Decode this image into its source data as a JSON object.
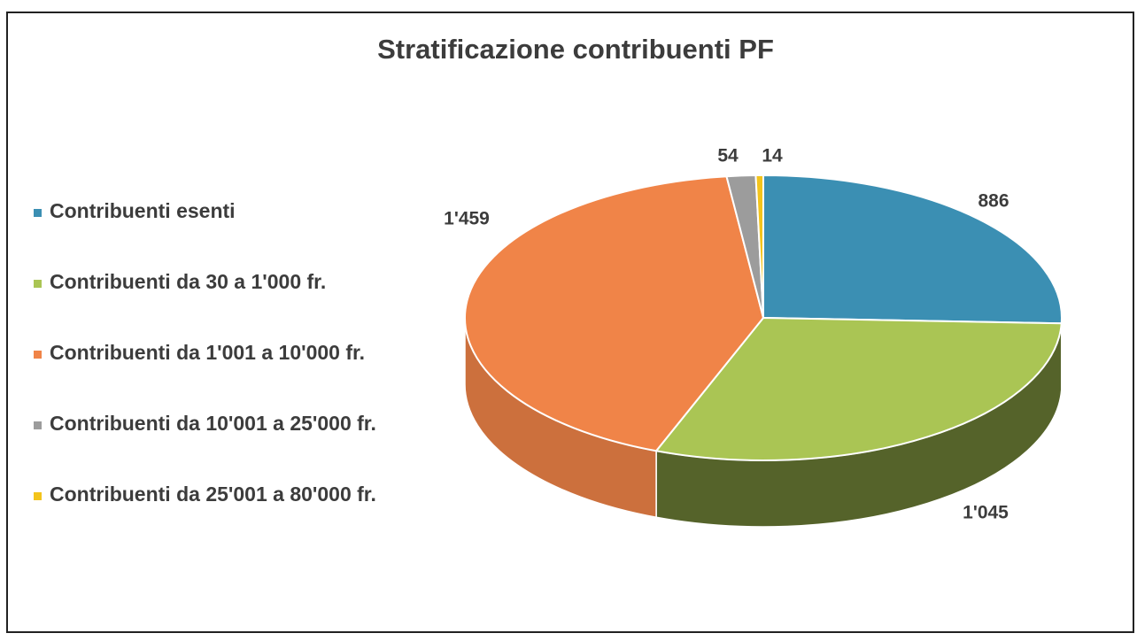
{
  "chart_data": {
    "type": "pie",
    "title": "Stratificazione contribuenti PF",
    "categories": [
      "Contribuenti esenti",
      "Contribuenti da 30 a 1'000 fr.",
      "Contribuenti da 1'001 a 10'000 fr.",
      "Contribuenti da 10'001 a 25'000 fr.",
      "Contribuenti da 25'001 a 80'000 fr."
    ],
    "values": [
      886,
      1045,
      1459,
      54,
      14
    ],
    "value_labels": [
      "886",
      "1'045",
      "1'459",
      "54",
      "14"
    ],
    "colors": [
      "#3b8fb3",
      "#aac554",
      "#f08448",
      "#9c9c9c",
      "#f3c41c"
    ],
    "legend": "left"
  }
}
